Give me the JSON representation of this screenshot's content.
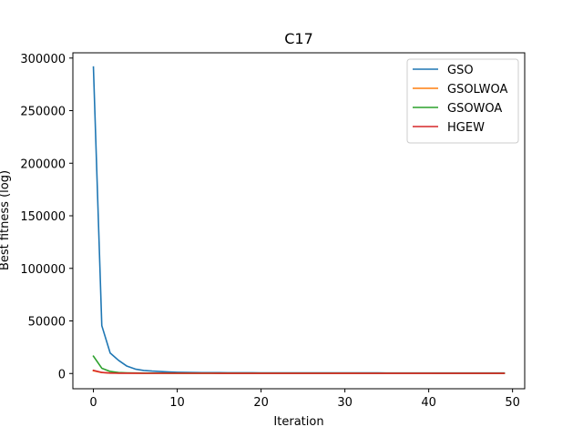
{
  "chart_data": {
    "type": "line",
    "title": "C17",
    "xlabel": "Iteration",
    "ylabel": "Best fitness (log)",
    "xlim": [
      -2.45,
      51.45
    ],
    "ylim": [
      -14500,
      305000
    ],
    "xticks": [
      0,
      10,
      20,
      30,
      40,
      50
    ],
    "yticks": [
      0,
      50000,
      100000,
      150000,
      200000,
      250000,
      300000
    ],
    "grid": false,
    "legend_position": "top-right",
    "x": [
      0,
      1,
      2,
      3,
      4,
      5,
      6,
      7,
      8,
      9,
      10,
      11,
      12,
      13,
      14,
      15,
      16,
      17,
      18,
      19,
      20,
      21,
      22,
      23,
      24,
      25,
      26,
      27,
      28,
      29,
      30,
      31,
      32,
      33,
      34,
      35,
      36,
      37,
      38,
      39,
      40,
      41,
      42,
      43,
      44,
      45,
      46,
      47,
      48,
      49
    ],
    "series": [
      {
        "name": "GSO",
        "color": "#1f77b4",
        "values": [
          291500,
          45500,
          19500,
          12500,
          7000,
          4200,
          2900,
          2300,
          1900,
          1500,
          1200,
          1050,
          950,
          880,
          820,
          780,
          740,
          710,
          690,
          670,
          655,
          640,
          630,
          620,
          610,
          600,
          595,
          590,
          585,
          580,
          575,
          570,
          565,
          560,
          555,
          550,
          548,
          545,
          542,
          540,
          538,
          536,
          534,
          532,
          530,
          528,
          526,
          524,
          522,
          520
        ]
      },
      {
        "name": "GSOLWOA",
        "color": "#ff7f0e",
        "values": [
          2600,
          900,
          500,
          380,
          320,
          300,
          290,
          285,
          280,
          278,
          276,
          274,
          272,
          270,
          268,
          266,
          264,
          262,
          260,
          258,
          256,
          254,
          252,
          250,
          248,
          246,
          244,
          242,
          240,
          238,
          236,
          234,
          232,
          230,
          228,
          226,
          224,
          222,
          220,
          218,
          216,
          214,
          212,
          210,
          208,
          206,
          204,
          202,
          200,
          198
        ]
      },
      {
        "name": "GSOWOA",
        "color": "#2ca02c",
        "values": [
          16500,
          5000,
          2000,
          900,
          600,
          450,
          380,
          340,
          320,
          310,
          300,
          295,
          290,
          285,
          280,
          276,
          272,
          268,
          264,
          260,
          257,
          254,
          251,
          248,
          245,
          242,
          239,
          236,
          233,
          230,
          228,
          226,
          224,
          222,
          220,
          218,
          216,
          214,
          212,
          210,
          208,
          206,
          204,
          202,
          200,
          198,
          196,
          194,
          192,
          190
        ]
      },
      {
        "name": "HGEW",
        "color": "#d62728",
        "values": [
          3000,
          1000,
          400,
          300,
          260,
          240,
          230,
          225,
          220,
          218,
          216,
          214,
          212,
          210,
          208,
          206,
          204,
          202,
          200,
          198,
          196,
          194,
          192,
          190,
          188,
          186,
          184,
          182,
          180,
          178,
          176,
          174,
          172,
          170,
          168,
          166,
          164,
          162,
          160,
          158,
          156,
          154,
          152,
          150,
          148,
          146,
          144,
          142,
          140,
          138
        ]
      }
    ]
  }
}
